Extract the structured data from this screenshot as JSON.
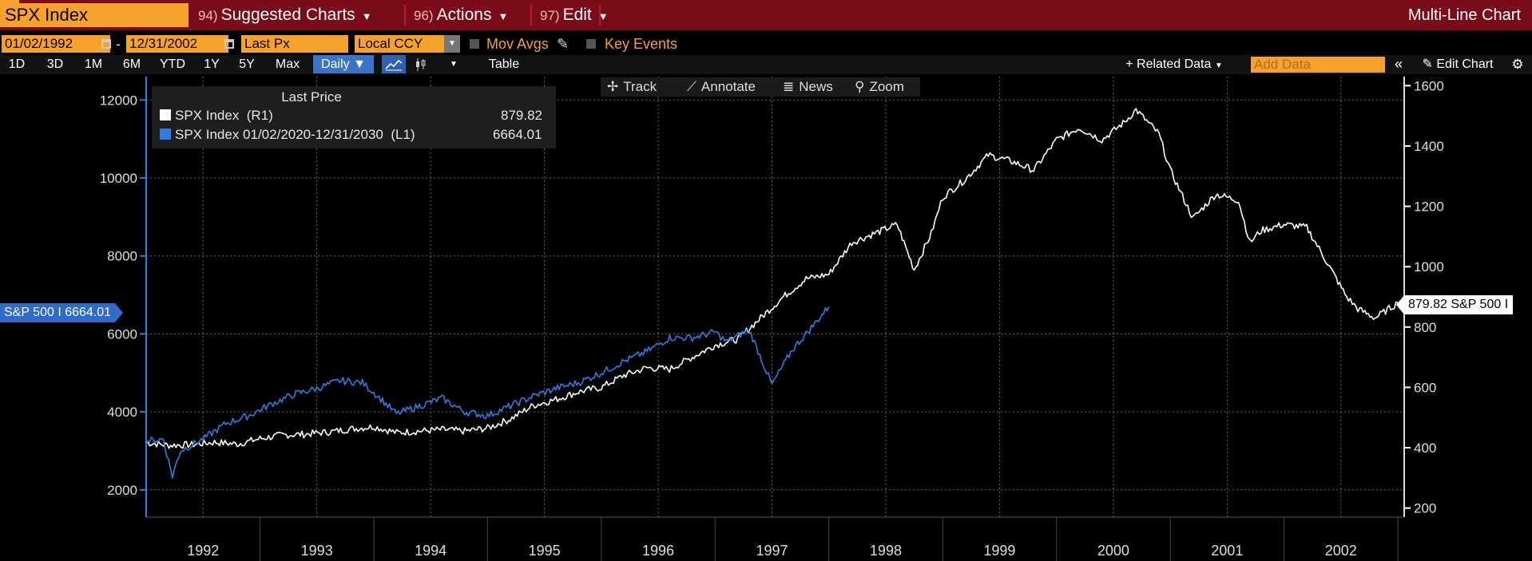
{
  "header": {
    "ticker": "SPX Index",
    "menus": [
      {
        "num": "94)",
        "label": "Suggested Charts"
      },
      {
        "num": "96)",
        "label": "Actions"
      },
      {
        "num": "97)",
        "label": "Edit"
      }
    ],
    "view_title": "Multi-Line Chart"
  },
  "settings": {
    "start_date": "01/02/1992",
    "end_date": "12/31/2002",
    "field": "Last Px",
    "currency": "Local CCY",
    "mov_avgs": "Mov Avgs",
    "key_events": "Key Events"
  },
  "toolbar": {
    "ranges": [
      "1D",
      "3D",
      "1M",
      "6M",
      "YTD",
      "1Y",
      "5Y",
      "Max"
    ],
    "frequency": "Daily",
    "table": "Table",
    "related_data": "+ Related Data",
    "add_data_placeholder": "Add Data",
    "edit_chart": "Edit Chart",
    "collapse": "«"
  },
  "chart_tools": {
    "track": "Track",
    "annotate": "Annotate",
    "news": "News",
    "zoom": "Zoom"
  },
  "legend": {
    "title": "Last Price",
    "rows": [
      {
        "label": "SPX Index  (R1)",
        "value": "879.82",
        "color": "#ffffff"
      },
      {
        "label": "SPX Index 01/02/2020-12/31/2030  (L1)",
        "value": "6664.01",
        "color": "#2f7de1"
      }
    ]
  },
  "last_labels": {
    "left": "S&P 500 I 6664.01",
    "right": "879.82 S&P 500 I"
  },
  "colors": {
    "accent": "#f6a12b",
    "header": "#7a0c1a",
    "white_series": "#ffffff",
    "blue_series": "#2f7de1"
  },
  "chart_data": {
    "type": "line",
    "x_tick_labels": [
      "1992",
      "1993",
      "1994",
      "1995",
      "1996",
      "1997",
      "1998",
      "1999",
      "2000",
      "2001",
      "2002"
    ],
    "left_axis": {
      "ylim": [
        1300,
        12600
      ],
      "ticks": [
        "2000",
        "4000",
        "6000",
        "8000",
        "10000",
        "12000"
      ]
    },
    "right_axis": {
      "ylim": [
        170,
        1630
      ],
      "ticks": [
        "200",
        "400",
        "600",
        "800",
        "1000",
        "1200",
        "1400",
        "1600"
      ]
    },
    "grid": true,
    "legend_position": "top-left",
    "series": [
      {
        "name": "SPX Index (R1)",
        "axis": "right",
        "x": [
          1992.0,
          1992.2,
          1992.4,
          1992.6,
          1992.8,
          1993.0,
          1993.2,
          1993.4,
          1993.6,
          1993.8,
          1994.0,
          1994.2,
          1994.4,
          1994.6,
          1994.8,
          1995.0,
          1995.2,
          1995.4,
          1995.6,
          1995.8,
          1996.0,
          1996.2,
          1996.4,
          1996.6,
          1996.8,
          1997.0,
          1997.2,
          1997.4,
          1997.6,
          1997.8,
          1998.0,
          1998.2,
          1998.4,
          1998.6,
          1998.75,
          1998.9,
          1999.0,
          1999.2,
          1999.4,
          1999.6,
          1999.8,
          2000.0,
          2000.2,
          2000.4,
          2000.6,
          2000.7,
          2000.9,
          2001.0,
          2001.2,
          2001.4,
          2001.6,
          2001.7,
          2001.8,
          2002.0,
          2002.2,
          2002.4,
          2002.55,
          2002.65,
          2002.8,
          2003.0
        ],
        "y": [
          417,
          408,
          410,
          418,
          412,
          430,
          442,
          445,
          452,
          462,
          470,
          450,
          455,
          460,
          455,
          465,
          495,
          540,
          560,
          585,
          600,
          640,
          665,
          660,
          700,
          740,
          760,
          830,
          900,
          960,
          975,
          1080,
          1110,
          1140,
          990,
          1110,
          1230,
          1290,
          1370,
          1350,
          1320,
          1420,
          1460,
          1420,
          1480,
          1520,
          1440,
          1320,
          1160,
          1240,
          1220,
          1080,
          1120,
          1140,
          1130,
          1000,
          900,
          860,
          830,
          880
        ]
      },
      {
        "name": "SPX Index 01/02/2020-12/31/2030 (L1)",
        "axis": "left",
        "x": [
          1992.0,
          1992.15,
          1992.23,
          1992.3,
          1992.5,
          1992.7,
          1992.9,
          1993.1,
          1993.3,
          1993.5,
          1993.7,
          1993.9,
          1994.0,
          1994.2,
          1994.4,
          1994.6,
          1994.8,
          1995.0,
          1995.2,
          1995.4,
          1995.6,
          1995.8,
          1996.0,
          1996.2,
          1996.4,
          1996.6,
          1996.8,
          1997.0,
          1997.1,
          1997.3,
          1997.5,
          1997.68,
          1997.8,
          1998.0
        ],
        "y": [
          3250,
          3300,
          2350,
          3000,
          3300,
          3700,
          3900,
          4200,
          4450,
          4600,
          4800,
          4750,
          4500,
          3950,
          4150,
          4350,
          4000,
          3900,
          4150,
          4400,
          4600,
          4750,
          5000,
          5300,
          5550,
          5900,
          5900,
          6050,
          5800,
          6100,
          4700,
          5600,
          6000,
          6700
        ]
      }
    ]
  }
}
